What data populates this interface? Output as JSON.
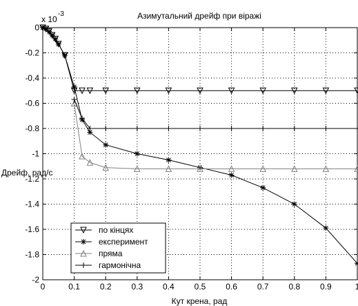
{
  "chart_data": {
    "type": "line",
    "title": "Азимутальний дрейф при віражі",
    "xlabel": "Кут крена, рад",
    "ylabel": "Дрейф, рад/с",
    "exponent_label": "x 10",
    "exponent_power": "-3",
    "xlim": [
      0,
      1
    ],
    "ylim": [
      -2,
      0
    ],
    "xticks": [
      0,
      0.1,
      0.2,
      0.3,
      0.4,
      0.5,
      0.6,
      0.7,
      0.8,
      0.9,
      1
    ],
    "xtick_labels": [
      "0",
      "0.1",
      "0.2",
      "0.3",
      "0.4",
      "0.5",
      "0.6",
      "0.7",
      "0.8",
      "0.9",
      "1"
    ],
    "yticks": [
      0,
      -0.2,
      -0.4,
      -0.6,
      -0.8,
      -1,
      -1.2,
      -1.4,
      -1.6,
      -1.8,
      -2
    ],
    "ytick_labels": [
      "0",
      "-0.2",
      "-0.4",
      "-0.6",
      "-0.8",
      "-1",
      "-1.2",
      "-1.4",
      "-1.6",
      "-1.8",
      "-2"
    ],
    "grid": true,
    "legend_position": "bottom-left",
    "series": [
      {
        "name": "по кінцях",
        "marker": "triangle-down",
        "color": "#000000",
        "x": [
          0,
          0.01,
          0.02,
          0.03,
          0.04,
          0.05,
          0.07,
          0.1,
          0.125,
          0.15,
          0.2,
          0.3,
          0.4,
          0.5,
          0.6,
          0.7,
          0.8,
          0.9,
          1
        ],
        "y": [
          0,
          -0.01,
          -0.03,
          -0.06,
          -0.09,
          -0.13,
          -0.22,
          -0.5,
          -0.5,
          -0.5,
          -0.5,
          -0.5,
          -0.5,
          -0.5,
          -0.5,
          -0.5,
          -0.5,
          -0.5,
          -0.5
        ]
      },
      {
        "name": "експеримент",
        "marker": "asterisk",
        "color": "#000000",
        "x": [
          0,
          0.01,
          0.02,
          0.03,
          0.04,
          0.05,
          0.07,
          0.1,
          0.125,
          0.15,
          0.2,
          0.3,
          0.4,
          0.5,
          0.6,
          0.7,
          0.8,
          0.9,
          1
        ],
        "y": [
          0,
          -0.01,
          -0.03,
          -0.06,
          -0.09,
          -0.13,
          -0.22,
          -0.47,
          -0.73,
          -0.83,
          -0.93,
          -1.0,
          -1.05,
          -1.11,
          -1.17,
          -1.27,
          -1.4,
          -1.59,
          -1.87
        ]
      },
      {
        "name": "пряма",
        "marker": "triangle-up",
        "color": "#808080",
        "x": [
          0.1,
          0.125,
          0.15,
          0.2,
          0.3,
          0.4,
          0.5,
          0.6,
          0.7,
          0.8,
          0.9,
          1
        ],
        "y": [
          -0.6,
          -1.02,
          -1.07,
          -1.11,
          -1.12,
          -1.12,
          -1.12,
          -1.12,
          -1.12,
          -1.12,
          -1.12,
          -1.12
        ]
      },
      {
        "name": "гармонічна",
        "marker": "plus",
        "color": "#000000",
        "x": [
          0.1,
          0.125,
          0.15,
          0.2,
          0.3,
          0.4,
          0.5,
          0.6,
          0.7,
          0.8,
          0.9,
          1
        ],
        "y": [
          -0.57,
          -0.72,
          -0.8,
          -0.8,
          -0.8,
          -0.8,
          -0.8,
          -0.8,
          -0.8,
          -0.8,
          -0.8,
          -0.8
        ]
      }
    ]
  }
}
